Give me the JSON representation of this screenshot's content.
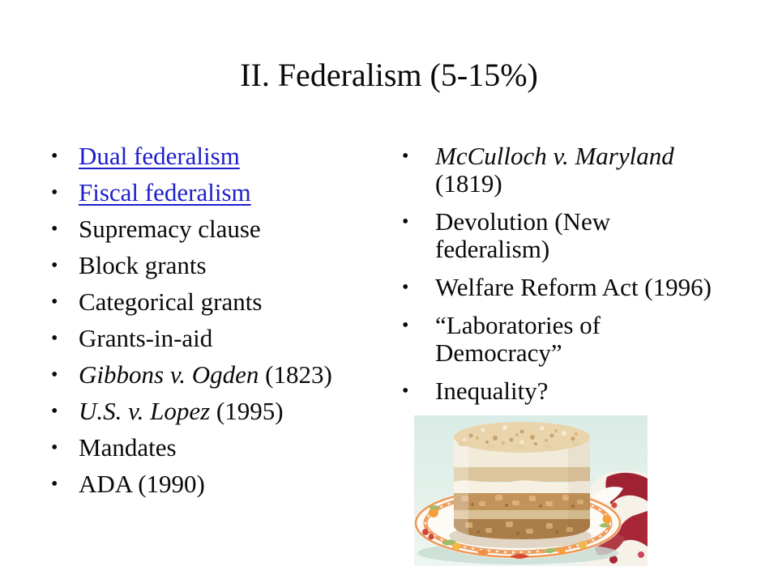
{
  "slide": {
    "title": "II. Federalism (5-15%)"
  },
  "colors": {
    "text": "#0a0a0a",
    "link": "#1e1ecd"
  },
  "bullet_char": "•",
  "lists": {
    "left": {
      "items": [
        {
          "lines": [
            {
              "runs": [
                {
                  "text": "Dual federalism",
                  "style": "link"
                }
              ]
            }
          ]
        },
        {
          "lines": [
            {
              "runs": [
                {
                  "text": "Fiscal federalism",
                  "style": "link"
                }
              ]
            }
          ]
        },
        {
          "lines": [
            {
              "runs": [
                {
                  "text": "Supremacy clause",
                  "style": "normal"
                }
              ]
            }
          ]
        },
        {
          "lines": [
            {
              "runs": [
                {
                  "text": "Block grants",
                  "style": "normal"
                }
              ]
            }
          ]
        },
        {
          "lines": [
            {
              "runs": [
                {
                  "text": "Categorical grants",
                  "style": "normal"
                }
              ]
            }
          ]
        },
        {
          "lines": [
            {
              "runs": [
                {
                  "text": "Grants-in-aid",
                  "style": "normal"
                }
              ]
            }
          ]
        },
        {
          "lines": [
            {
              "runs": [
                {
                  "text": "Gibbons v. Ogden",
                  "style": "italic"
                },
                {
                  "text": " (1823)",
                  "style": "normal"
                }
              ]
            }
          ]
        },
        {
          "lines": [
            {
              "runs": [
                {
                  "text": "U.S. v. Lopez",
                  "style": "italic"
                },
                {
                  "text": " (1995)",
                  "style": "normal"
                }
              ]
            }
          ]
        },
        {
          "lines": [
            {
              "runs": [
                {
                  "text": "Mandates",
                  "style": "normal"
                }
              ]
            }
          ]
        },
        {
          "lines": [
            {
              "runs": [
                {
                  "text": "ADA (1990)",
                  "style": "normal"
                }
              ]
            }
          ]
        }
      ]
    },
    "right": {
      "items": [
        {
          "lines": [
            {
              "runs": [
                {
                  "text": "McCulloch v. Maryland",
                  "style": "italic"
                }
              ]
            },
            {
              "runs": [
                {
                  "text": "(1819)",
                  "style": "normal"
                }
              ]
            }
          ]
        },
        {
          "lines": [
            {
              "runs": [
                {
                  "text": "Devolution (New",
                  "style": "normal"
                }
              ]
            },
            {
              "runs": [
                {
                  "text": "federalism)",
                  "style": "normal"
                }
              ]
            }
          ]
        },
        {
          "lines": [
            {
              "runs": [
                {
                  "text": "Welfare Reform Act (1996)",
                  "style": "normal"
                }
              ]
            }
          ]
        },
        {
          "lines": [
            {
              "runs": [
                {
                  "text": "“Laboratories of",
                  "style": "normal"
                }
              ]
            },
            {
              "runs": [
                {
                  "text": "Democracy”",
                  "style": "normal"
                }
              ]
            }
          ]
        },
        {
          "lines": [
            {
              "runs": [
                {
                  "text": "Inequality?",
                  "style": "normal"
                }
              ]
            }
          ]
        }
      ]
    }
  },
  "image": {
    "name": "layer-cake-photo",
    "description": "Layered apple crumb cake on a floral orange-rimmed plate with a red and white napkin, pale mint background",
    "colors": {
      "background": "#d9ece5",
      "background_light": "#eef6f1",
      "cream": "#f2ebda",
      "cream_light": "#f6f0e2",
      "crumble": "#e9d4ac",
      "sponge": "#dcc59c",
      "sponge_dark": "#d9c094",
      "filling": "#c2935b",
      "filling_dark": "#ab7d49",
      "plate_rim": "#ec8c42",
      "napkin_red": "#9e2232"
    }
  }
}
